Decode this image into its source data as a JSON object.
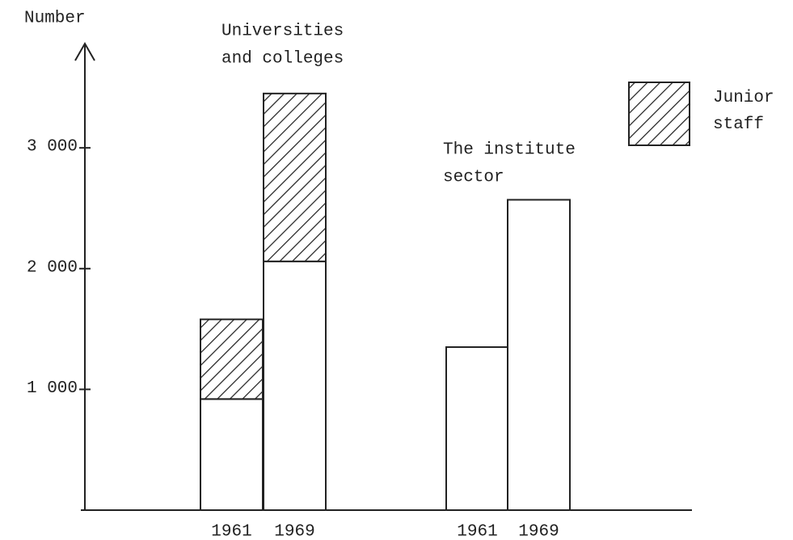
{
  "chart_data": {
    "type": "stacked_bar",
    "y_label": "Number",
    "categories": [
      "1961",
      "1969",
      "1961",
      "1969"
    ],
    "groups": [
      {
        "lines": [
          "Universities",
          "and colleges"
        ]
      },
      {
        "lines": [
          "The institute",
          "sector"
        ]
      }
    ],
    "series": [
      {
        "color": "#ffffff",
        "hatch": false,
        "values": [
          920,
          2060,
          1350,
          2570
        ]
      },
      {
        "name": "Junior staff",
        "color": "#ffffff",
        "hatch": true,
        "values": [
          660,
          1390,
          null,
          null
        ]
      }
    ],
    "ylim": [
      0,
      3850
    ],
    "yticks": [
      {
        "value": 1000,
        "label": "1 000"
      },
      {
        "value": 2000,
        "label": "2 000"
      },
      {
        "value": 3000,
        "label": "3 000"
      }
    ],
    "legend": "top-right"
  }
}
